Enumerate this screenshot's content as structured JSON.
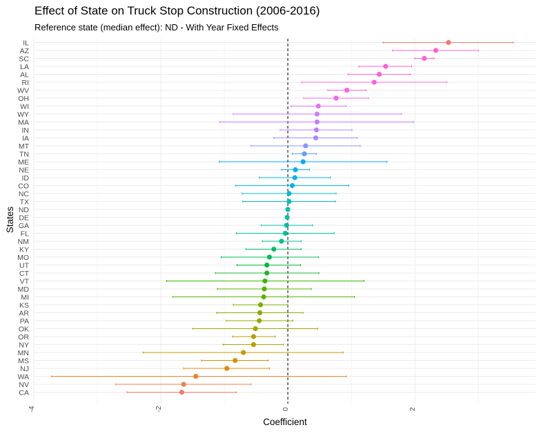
{
  "chart_data": {
    "type": "scatter",
    "subtype": "coefficient point-range plot",
    "title": "Effect of State on Truck Stop Construction (2006-2016)",
    "subtitle": "Reference state (median effect): ND - With Year Fixed Effects",
    "xlabel": "Coefficient",
    "ylabel": "States",
    "xlim": [
      -4,
      3.9
    ],
    "x_ticks": [
      -4,
      -2,
      0,
      2
    ],
    "x_tick_labels": [
      "-4",
      "-2",
      "0",
      "2"
    ],
    "reference_line": 0,
    "grid": true,
    "legend": "none",
    "points": [
      {
        "state": "IL",
        "estimate": 2.53,
        "low": 1.5,
        "high": 3.55,
        "color": "#F8766D"
      },
      {
        "state": "AZ",
        "estimate": 2.33,
        "low": 1.65,
        "high": 3.0,
        "color": "#FB61D7"
      },
      {
        "state": "SC",
        "estimate": 2.15,
        "low": 2.0,
        "high": 2.3,
        "color": "#FB61D7"
      },
      {
        "state": "LA",
        "estimate": 1.54,
        "low": 1.12,
        "high": 1.95,
        "color": "#FB61D7"
      },
      {
        "state": "AL",
        "estimate": 1.44,
        "low": 0.95,
        "high": 1.93,
        "color": "#FB61D7"
      },
      {
        "state": "RI",
        "estimate": 1.36,
        "low": 0.22,
        "high": 2.5,
        "color": "#F564E3"
      },
      {
        "state": "WV",
        "estimate": 0.93,
        "low": 0.63,
        "high": 1.23,
        "color": "#F564E3"
      },
      {
        "state": "OH",
        "estimate": 0.76,
        "low": 0.25,
        "high": 1.27,
        "color": "#EF67EB"
      },
      {
        "state": "WI",
        "estimate": 0.48,
        "low": 0.05,
        "high": 0.92,
        "color": "#DE73F8"
      },
      {
        "state": "WY",
        "estimate": 0.46,
        "low": -0.86,
        "high": 1.79,
        "color": "#D07BF7"
      },
      {
        "state": "MA",
        "estimate": 0.46,
        "low": -1.07,
        "high": 1.98,
        "color": "#C77CFF"
      },
      {
        "state": "IN",
        "estimate": 0.45,
        "low": -0.12,
        "high": 1.01,
        "color": "#B983FF"
      },
      {
        "state": "IA",
        "estimate": 0.44,
        "low": -0.22,
        "high": 1.09,
        "color": "#A58AFF"
      },
      {
        "state": "MT",
        "estimate": 0.28,
        "low": -0.58,
        "high": 1.14,
        "color": "#8B93FF"
      },
      {
        "state": "TN",
        "estimate": 0.26,
        "low": 0.07,
        "high": 0.45,
        "color": "#619CFF"
      },
      {
        "state": "ME",
        "estimate": 0.24,
        "low": -1.08,
        "high": 1.56,
        "color": "#00A9FF"
      },
      {
        "state": "NE",
        "estimate": 0.12,
        "low": -0.1,
        "high": 0.34,
        "color": "#00B0F6"
      },
      {
        "state": "ID",
        "estimate": 0.11,
        "low": -0.45,
        "high": 0.67,
        "color": "#00B4EF"
      },
      {
        "state": "CO",
        "estimate": 0.07,
        "low": -0.82,
        "high": 0.96,
        "color": "#00B8E7"
      },
      {
        "state": "NC",
        "estimate": 0.02,
        "low": -0.72,
        "high": 0.76,
        "color": "#00BCD8"
      },
      {
        "state": "TX",
        "estimate": 0.02,
        "low": -0.71,
        "high": 0.75,
        "color": "#00BFC4"
      },
      {
        "state": "ND",
        "estimate": 0.0,
        "low": 0.0,
        "high": 0.0,
        "color": "#00C0B8"
      },
      {
        "state": "DE",
        "estimate": -0.01,
        "low": -0.03,
        "high": 0.02,
        "color": "#00C1A9"
      },
      {
        "state": "GA",
        "estimate": -0.02,
        "low": -0.42,
        "high": 0.39,
        "color": "#00BFA4"
      },
      {
        "state": "FL",
        "estimate": -0.04,
        "low": -0.81,
        "high": 0.73,
        "color": "#00C19A"
      },
      {
        "state": "NM",
        "estimate": -0.1,
        "low": -0.4,
        "high": 0.21,
        "color": "#00C08B"
      },
      {
        "state": "KY",
        "estimate": -0.22,
        "low": -0.66,
        "high": 0.21,
        "color": "#00BE67"
      },
      {
        "state": "MO",
        "estimate": -0.29,
        "low": -1.05,
        "high": 0.48,
        "color": "#00BC56"
      },
      {
        "state": "UT",
        "estimate": -0.33,
        "low": -0.8,
        "high": 0.2,
        "color": "#00BA38"
      },
      {
        "state": "CT",
        "estimate": -0.33,
        "low": -1.14,
        "high": 0.49,
        "color": "#1CB62E"
      },
      {
        "state": "VT",
        "estimate": -0.36,
        "low": -1.91,
        "high": 1.2,
        "color": "#39B600"
      },
      {
        "state": "MD",
        "estimate": -0.37,
        "low": -1.11,
        "high": 0.37,
        "color": "#53B400"
      },
      {
        "state": "MI",
        "estimate": -0.38,
        "low": -1.81,
        "high": 1.05,
        "color": "#5BB300"
      },
      {
        "state": "KS",
        "estimate": -0.43,
        "low": -0.86,
        "high": 0.0,
        "color": "#7CAE00"
      },
      {
        "state": "AR",
        "estimate": -0.44,
        "low": -1.12,
        "high": 0.24,
        "color": "#8AAB00"
      },
      {
        "state": "PA",
        "estimate": -0.45,
        "low": -0.97,
        "high": 0.08,
        "color": "#94AA00"
      },
      {
        "state": "OK",
        "estimate": -0.51,
        "low": -1.5,
        "high": 0.47,
        "color": "#A3A500"
      },
      {
        "state": "OR",
        "estimate": -0.54,
        "low": -0.87,
        "high": -0.2,
        "color": "#B49F00"
      },
      {
        "state": "NY",
        "estimate": -0.54,
        "low": -1.02,
        "high": -0.07,
        "color": "#B79F00"
      },
      {
        "state": "MN",
        "estimate": -0.7,
        "low": -2.28,
        "high": 0.87,
        "color": "#C49A00"
      },
      {
        "state": "MS",
        "estimate": -0.83,
        "low": -1.36,
        "high": -0.31,
        "color": "#D89000"
      },
      {
        "state": "NJ",
        "estimate": -0.96,
        "low": -1.64,
        "high": -0.29,
        "color": "#DE8C00"
      },
      {
        "state": "WA",
        "estimate": -1.45,
        "low": -3.72,
        "high": 0.92,
        "color": "#E88526"
      },
      {
        "state": "NV",
        "estimate": -1.64,
        "low": -2.71,
        "high": -0.58,
        "color": "#F07F4A"
      },
      {
        "state": "CA",
        "estimate": -1.67,
        "low": -2.53,
        "high": -0.81,
        "color": "#F8766D"
      }
    ]
  }
}
